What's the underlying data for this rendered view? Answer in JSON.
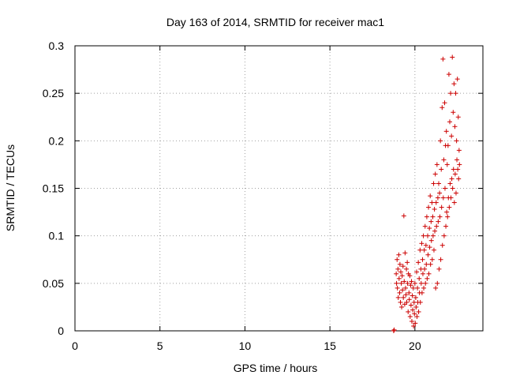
{
  "chart_data": {
    "type": "scatter",
    "title": "Day 163 of 2014, SRMTID for receiver mac1",
    "xlabel": "GPS time / hours",
    "ylabel": "SRMTID / TECUs",
    "xlim": [
      0,
      24
    ],
    "ylim": [
      0,
      0.3
    ],
    "xticks": [
      0,
      5,
      10,
      15,
      20
    ],
    "xtick_labels": [
      "0",
      "5",
      "10",
      "15",
      "20"
    ],
    "yticks": [
      0,
      0.05,
      0.1,
      0.15,
      0.2,
      0.25,
      0.3
    ],
    "ytick_labels": [
      "0",
      "0.05",
      "0.1",
      "0.15",
      "0.2",
      "0.25",
      "0.3"
    ],
    "grid": true,
    "marker": "plus",
    "color": "#cc0000",
    "series": [
      {
        "name": "SRMTID",
        "points": [
          [
            18.75,
            0.0
          ],
          [
            18.78,
            0.001
          ],
          [
            18.9,
            0.06
          ],
          [
            18.92,
            0.05
          ],
          [
            18.95,
            0.075
          ],
          [
            18.97,
            0.045
          ],
          [
            19.0,
            0.065
          ],
          [
            19.02,
            0.035
          ],
          [
            19.05,
            0.08
          ],
          [
            19.07,
            0.055
          ],
          [
            19.1,
            0.04
          ],
          [
            19.12,
            0.07
          ],
          [
            19.15,
            0.03
          ],
          [
            19.17,
            0.062
          ],
          [
            19.2,
            0.05
          ],
          [
            19.22,
            0.025
          ],
          [
            19.25,
            0.058
          ],
          [
            19.27,
            0.043
          ],
          [
            19.3,
            0.068
          ],
          [
            19.32,
            0.035
          ],
          [
            19.35,
            0.121
          ],
          [
            19.37,
            0.052
          ],
          [
            19.4,
            0.028
          ],
          [
            19.42,
            0.082
          ],
          [
            19.45,
            0.045
          ],
          [
            19.47,
            0.038
          ],
          [
            19.5,
            0.065
          ],
          [
            19.52,
            0.03
          ],
          [
            19.55,
            0.072
          ],
          [
            19.57,
            0.05
          ],
          [
            19.6,
            0.02
          ],
          [
            19.62,
            0.06
          ],
          [
            19.65,
            0.04
          ],
          [
            19.67,
            0.033
          ],
          [
            19.7,
            0.058
          ],
          [
            19.72,
            0.015
          ],
          [
            19.75,
            0.048
          ],
          [
            19.77,
            0.027
          ],
          [
            19.8,
            0.052
          ],
          [
            19.82,
            0.01
          ],
          [
            19.85,
            0.037
          ],
          [
            19.87,
            0.022
          ],
          [
            19.9,
            0.045
          ],
          [
            19.92,
            0.005
          ],
          [
            19.95,
            0.03
          ],
          [
            19.97,
            0.018
          ],
          [
            20.0,
            0.05
          ],
          [
            20.02,
            0.008
          ],
          [
            20.05,
            0.035
          ],
          [
            20.07,
            0.025
          ],
          [
            20.1,
            0.062
          ],
          [
            20.12,
            0.015
          ],
          [
            20.15,
            0.045
          ],
          [
            20.17,
            0.03
          ],
          [
            20.2,
            0.072
          ],
          [
            20.22,
            0.02
          ],
          [
            20.25,
            0.055
          ],
          [
            20.27,
            0.04
          ],
          [
            20.3,
            0.085
          ],
          [
            20.32,
            0.03
          ],
          [
            20.35,
            0.065
          ],
          [
            20.37,
            0.05
          ],
          [
            20.4,
            0.092
          ],
          [
            20.42,
            0.04
          ],
          [
            20.45,
            0.075
          ],
          [
            20.47,
            0.06
          ],
          [
            20.5,
            0.1
          ],
          [
            20.52,
            0.045
          ],
          [
            20.55,
            0.085
          ],
          [
            20.57,
            0.065
          ],
          [
            20.6,
            0.11
          ],
          [
            20.62,
            0.05
          ],
          [
            20.65,
            0.09
          ],
          [
            20.67,
            0.07
          ],
          [
            20.7,
            0.12
          ],
          [
            20.72,
            0.055
          ],
          [
            20.75,
            0.1
          ],
          [
            20.77,
            0.08
          ],
          [
            20.8,
            0.13
          ],
          [
            20.82,
            0.06
          ],
          [
            20.85,
            0.108
          ],
          [
            20.87,
            0.088
          ],
          [
            20.9,
            0.142
          ],
          [
            20.92,
            0.07
          ],
          [
            20.95,
            0.115
          ],
          [
            20.97,
            0.095
          ],
          [
            21.0,
            0.135
          ],
          [
            21.02,
            0.075
          ],
          [
            21.05,
            0.12
          ],
          [
            21.07,
            0.1
          ],
          [
            21.1,
            0.155
          ],
          [
            21.12,
            0.085
          ],
          [
            21.15,
            0.128
          ],
          [
            21.17,
            0.105
          ],
          [
            21.2,
            0.165
          ],
          [
            21.22,
            0.045
          ],
          [
            21.25,
            0.135
          ],
          [
            21.27,
            0.11
          ],
          [
            21.3,
            0.175
          ],
          [
            21.32,
            0.05
          ],
          [
            21.35,
            0.14
          ],
          [
            21.37,
            0.115
          ],
          [
            21.4,
            0.155
          ],
          [
            21.42,
            0.065
          ],
          [
            21.45,
            0.145
          ],
          [
            21.47,
            0.12
          ],
          [
            21.5,
            0.2
          ],
          [
            21.52,
            0.075
          ],
          [
            21.55,
            0.17
          ],
          [
            21.57,
            0.13
          ],
          [
            21.6,
            0.235
          ],
          [
            21.62,
            0.09
          ],
          [
            21.65,
            0.286
          ],
          [
            21.67,
            0.14
          ],
          [
            21.7,
            0.18
          ],
          [
            21.72,
            0.1
          ],
          [
            21.75,
            0.24
          ],
          [
            21.77,
            0.15
          ],
          [
            21.8,
            0.195
          ],
          [
            21.82,
            0.11
          ],
          [
            21.85,
            0.21
          ],
          [
            21.87,
            0.125
          ],
          [
            21.9,
            0.175
          ],
          [
            21.92,
            0.12
          ],
          [
            21.95,
            0.195
          ],
          [
            21.97,
            0.14
          ],
          [
            22.0,
            0.27
          ],
          [
            22.02,
            0.13
          ],
          [
            22.05,
            0.22
          ],
          [
            22.07,
            0.155
          ],
          [
            22.1,
            0.25
          ],
          [
            22.12,
            0.14
          ],
          [
            22.15,
            0.205
          ],
          [
            22.17,
            0.16
          ],
          [
            22.2,
            0.288
          ],
          [
            22.22,
            0.15
          ],
          [
            22.25,
            0.23
          ],
          [
            22.27,
            0.17
          ],
          [
            22.3,
            0.26
          ],
          [
            22.32,
            0.135
          ],
          [
            22.35,
            0.215
          ],
          [
            22.37,
            0.165
          ],
          [
            22.4,
            0.25
          ],
          [
            22.42,
            0.145
          ],
          [
            22.45,
            0.2
          ],
          [
            22.47,
            0.18
          ],
          [
            22.5,
            0.265
          ],
          [
            22.52,
            0.17
          ],
          [
            22.55,
            0.225
          ],
          [
            22.57,
            0.16
          ],
          [
            22.6,
            0.19
          ],
          [
            22.62,
            0.175
          ]
        ]
      }
    ]
  }
}
